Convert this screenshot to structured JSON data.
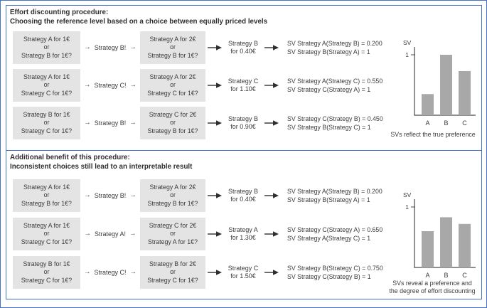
{
  "figure": {
    "panels": [
      {
        "title": "Effort discounting procedure:\nChoosing the reference level based on a choice between equally priced levels",
        "rows": [
          {
            "box1": "Strategy A for 1€\nor\nStrategy B for 1€?",
            "choice": "Strategy B!",
            "box2": "Strategy A for 2€\nor\nStrategy B for 1€?",
            "outcome": "Strategy B\nfor 0.40€",
            "sv": "SV Strategy A(Strategy B) = 0.200\nSV Strategy B(Strategy A) = 1"
          },
          {
            "box1": "Strategy A for 1€\nor\nStrategy C for 1€?",
            "choice": "Strategy C!",
            "box2": "Strategy A for 2€\nor\nStrategy C for 1€?",
            "outcome": "Strategy C\nfor 1.10€",
            "sv": "SV Strategy A(Strategy C) = 0.550\nSV Strategy C(Strategy A) = 1"
          },
          {
            "box1": "Strategy B for 1€\nor\nStrategy C for 1€?",
            "choice": "Strategy B!",
            "box2": "Strategy C for 2€\nor\nStrategy B for 1€?",
            "outcome": "Strategy B\nfor 0.90€",
            "sv": "SV Strategy C(Strategy B) = 0.450\nSV Strategy B(Strategy C) = 1"
          }
        ],
        "chart_caption": "SVs reflect the true preference"
      },
      {
        "title": "Additional benefit of this procedure:\nInconsistent choices still lead to an interpretable result",
        "rows": [
          {
            "box1": "Strategy A for 1€\nor\nStrategy B for 1€?",
            "choice": "Strategy B!",
            "box2": "Strategy A for 2€\nor\nStrategy B for 1€?",
            "outcome": "Strategy B\nfor 0.40€",
            "sv": "SV Strategy A(Strategy B) = 0.200\nSV Strategy B(Strategy A) = 1"
          },
          {
            "box1": "Strategy A for 1€\nor\nStrategy C for 1€?",
            "choice": "Strategy A!",
            "box2": "Strategy C for 2€\nor\nStrategy A for 1€?",
            "outcome": "Strategy A\nfor 1.30€",
            "sv": "SV Strategy C(Strategy A) = 0.650\nSV Strategy A(Strategy C) = 1"
          },
          {
            "box1": "Strategy B for 1€\nor\nStrategy C for 1€?",
            "choice": "Strategy C!",
            "box2": "Strategy B for 2€\nor\nStrategy C for 1€?",
            "outcome": "Strategy C\nfor 1.50€",
            "sv": "SV Strategy B(Strategy C) = 0.750\nSV Strategy C(Strategy B) = 1"
          }
        ],
        "chart_caption": "SVs reveal a preference and\nthe degree of effort discounting"
      }
    ]
  },
  "icons": {
    "arrow_right": "→"
  },
  "colors": {
    "border": "#4472c4",
    "box_bg": "#e4e4e4",
    "bar": "#a8a8a8",
    "text": "#3b3b3b",
    "title_text": "#2e2e2e",
    "axis": "#4a4a4a",
    "arrow": "#2f2f2f"
  },
  "chart_data": [
    {
      "type": "bar",
      "title": "",
      "ylabel": "SV",
      "xlabel": "",
      "categories": [
        "A",
        "B",
        "C"
      ],
      "values": [
        0.35,
        1.0,
        0.73
      ],
      "yticks": [
        1
      ],
      "ytick_labels": [
        "1"
      ],
      "ylim": [
        0,
        1.13
      ],
      "grid": false,
      "legend": null,
      "caption": "SVs reflect the true preference"
    },
    {
      "type": "bar",
      "title": "",
      "ylabel": "SV",
      "xlabel": "",
      "categories": [
        "A",
        "B",
        "C"
      ],
      "values": [
        0.6,
        0.83,
        0.72
      ],
      "yticks": [
        1
      ],
      "ytick_labels": [
        "1"
      ],
      "ylim": [
        0,
        1.13
      ],
      "grid": false,
      "legend": null,
      "caption": "SVs reveal a preference and\nthe degree of effort discounting"
    }
  ]
}
